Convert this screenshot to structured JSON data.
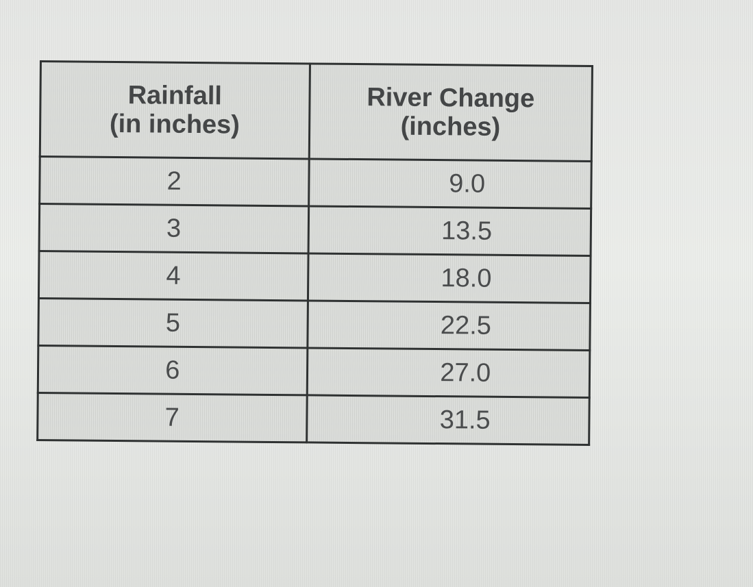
{
  "table": {
    "headers": [
      {
        "line1": "Rainfall",
        "line2": "(in inches)"
      },
      {
        "line1": "River Change",
        "line2": "(inches)"
      }
    ],
    "rows": [
      {
        "rainfall": "2",
        "river_change": "9.0"
      },
      {
        "rainfall": "3",
        "river_change": "13.5"
      },
      {
        "rainfall": "4",
        "river_change": "18.0"
      },
      {
        "rainfall": "5",
        "river_change": "22.5"
      },
      {
        "rainfall": "6",
        "river_change": "27.0"
      },
      {
        "rainfall": "7",
        "river_change": "31.5"
      }
    ]
  }
}
